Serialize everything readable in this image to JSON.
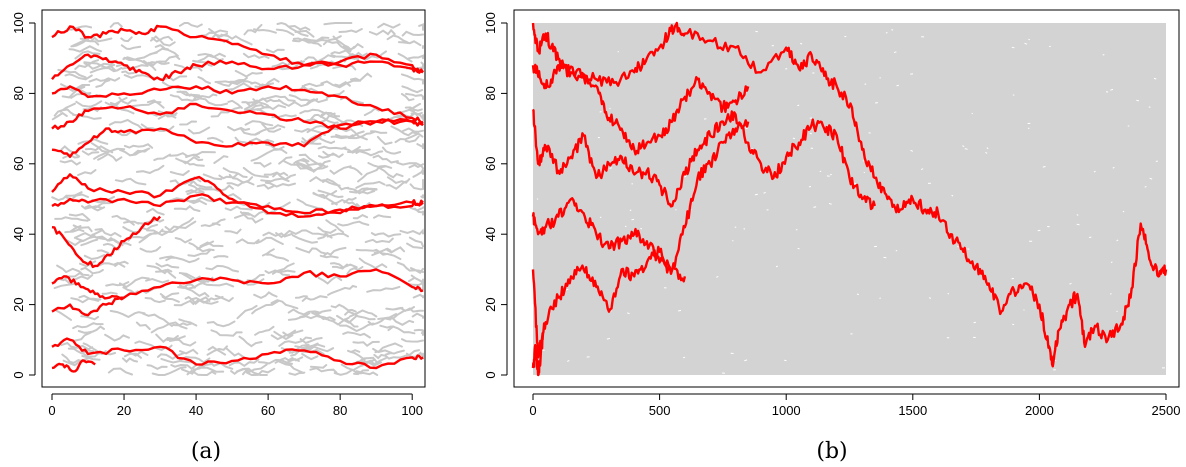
{
  "chart_data": [
    {
      "type": "line",
      "panel_label": "(a)",
      "xlim": [
        0,
        103
      ],
      "ylim": [
        0,
        100
      ],
      "x_ticks": [
        0,
        20,
        40,
        60,
        80,
        100
      ],
      "y_ticks": [
        0,
        20,
        40,
        60,
        80,
        100
      ],
      "grid": false,
      "background_web_color": "#c8c8c8",
      "line_color": "#ff0000",
      "series": [
        {
          "x": [
            0,
            5,
            10,
            15,
            20,
            25,
            30,
            40,
            50,
            60,
            70,
            80,
            90,
            100,
            103
          ],
          "y": [
            96,
            99,
            96,
            97,
            98,
            97,
            99,
            96,
            94,
            91,
            88,
            88,
            89,
            87,
            86
          ]
        },
        {
          "x": [
            0,
            5,
            10,
            15,
            20,
            25,
            30,
            35,
            40,
            50,
            60,
            70,
            80,
            90,
            100,
            103
          ],
          "y": [
            84,
            88,
            91,
            90,
            88,
            86,
            84,
            86,
            88,
            89,
            87,
            88,
            89,
            91,
            88,
            86
          ]
        },
        {
          "x": [
            0,
            5,
            10,
            20,
            30,
            40,
            50,
            60,
            70,
            80,
            90,
            100,
            103
          ],
          "y": [
            80,
            82,
            79,
            80,
            81,
            82,
            80,
            82,
            81,
            79,
            76,
            73,
            72
          ]
        },
        {
          "x": [
            0,
            5,
            10,
            20,
            30,
            40,
            50,
            60,
            70,
            80,
            90,
            100,
            103
          ],
          "y": [
            70,
            72,
            75,
            76,
            74,
            77,
            75,
            74,
            72,
            70,
            72,
            72,
            71
          ]
        },
        {
          "x": [
            0,
            5,
            10,
            15,
            20,
            30,
            40,
            50,
            60,
            70,
            80,
            90,
            100,
            103
          ],
          "y": [
            64,
            62,
            66,
            70,
            69,
            70,
            66,
            65,
            66,
            65,
            71,
            72,
            72,
            71
          ]
        },
        {
          "x": [
            0,
            5,
            10,
            20,
            30,
            40,
            45,
            50,
            60,
            70,
            80,
            90,
            100,
            103
          ],
          "y": [
            52,
            57,
            53,
            52,
            51,
            56,
            54,
            50,
            46,
            45,
            46,
            48,
            48,
            49
          ]
        },
        {
          "x": [
            0,
            5,
            10,
            20,
            30,
            40,
            50,
            60,
            70,
            80,
            90,
            100,
            103
          ],
          "y": [
            48,
            50,
            49,
            50,
            48,
            51,
            49,
            48,
            46,
            47,
            48,
            49,
            49
          ]
        },
        {
          "x": [
            0,
            4,
            8,
            12,
            16,
            20,
            25,
            30
          ],
          "y": [
            42,
            38,
            33,
            31,
            34,
            38,
            42,
            45
          ]
        },
        {
          "x": [
            0,
            5,
            10,
            15,
            20,
            30,
            40,
            50,
            60,
            70,
            80,
            90,
            100,
            103
          ],
          "y": [
            18,
            20,
            17,
            20,
            22,
            25,
            27,
            27,
            26,
            29,
            28,
            30,
            25,
            24
          ]
        },
        {
          "x": [
            0,
            4,
            8,
            12,
            16,
            20
          ],
          "y": [
            26,
            28,
            25,
            23,
            22,
            22
          ]
        },
        {
          "x": [
            0,
            5,
            10,
            20,
            30,
            40,
            50,
            60,
            70,
            80,
            90,
            100,
            103
          ],
          "y": [
            8,
            10,
            6,
            7,
            8,
            3,
            4,
            6,
            7,
            4,
            2,
            5,
            5
          ]
        },
        {
          "x": [
            0,
            3,
            6,
            9,
            12
          ],
          "y": [
            2,
            3,
            1,
            4,
            3
          ]
        }
      ]
    },
    {
      "type": "line",
      "panel_label": "(b)",
      "xlim": [
        -20,
        2550
      ],
      "ylim": [
        0,
        100
      ],
      "x_ticks": [
        0,
        500,
        1000,
        1500,
        2000,
        2500
      ],
      "y_ticks": [
        0,
        20,
        40,
        60,
        80,
        100
      ],
      "grid": false,
      "background_color": "#d3d3d3",
      "line_color": "#ff0000",
      "series": [
        {
          "x": [
            0,
            20,
            50,
            80,
            120,
            180,
            250,
            320,
            400,
            450,
            520,
            560,
            600,
            700,
            800,
            900,
            1000,
            1050,
            1100,
            1150,
            1200,
            1260,
            1300,
            1350,
            1400,
            1450,
            1500,
            1550,
            1600,
            1650,
            1700,
            1750,
            1800,
            1850,
            1900,
            1950,
            2000,
            2030,
            2050,
            2080,
            2120,
            2150,
            2180,
            2220,
            2270,
            2320,
            2360,
            2400,
            2430,
            2470,
            2500
          ],
          "y": [
            100,
            92,
            97,
            92,
            88,
            85,
            84,
            83,
            86,
            90,
            95,
            99,
            97,
            95,
            93,
            86,
            93,
            87,
            91,
            85,
            82,
            76,
            64,
            56,
            50,
            47,
            50,
            47,
            46,
            40,
            35,
            31,
            26,
            18,
            24,
            26,
            20,
            10,
            3,
            13,
            20,
            23,
            8,
            14,
            10,
            14,
            22,
            43,
            35,
            28,
            30
          ]
        },
        {
          "x": [
            0,
            30,
            60,
            100,
            150,
            200,
            260,
            300,
            350,
            400,
            450,
            500,
            550,
            600,
            650,
            700,
            750,
            800,
            850
          ],
          "y": [
            88,
            84,
            82,
            88,
            86,
            85,
            80,
            73,
            70,
            64,
            66,
            68,
            72,
            79,
            84,
            80,
            76,
            78,
            82
          ]
        },
        {
          "x": [
            0,
            20,
            50,
            100,
            150,
            200,
            250,
            300,
            350,
            400,
            450,
            500,
            550,
            600,
            650,
            700,
            750,
            800,
            850,
            900,
            950,
            1000,
            1050,
            1100,
            1150,
            1200,
            1250,
            1300,
            1350
          ],
          "y": [
            75,
            60,
            65,
            58,
            62,
            68,
            56,
            60,
            62,
            57,
            58,
            54,
            48,
            57,
            64,
            68,
            72,
            74,
            66,
            60,
            56,
            62,
            66,
            71,
            70,
            68,
            56,
            50,
            48
          ]
        },
        {
          "x": [
            0,
            20,
            50,
            100,
            150,
            200,
            250,
            300,
            350,
            400,
            450,
            500,
            550,
            600,
            650,
            700,
            750,
            800,
            850
          ],
          "y": [
            45,
            40,
            42,
            45,
            50,
            46,
            40,
            36,
            38,
            40,
            38,
            32,
            30,
            42,
            56,
            60,
            66,
            70,
            72
          ]
        },
        {
          "x": [
            0,
            20,
            50,
            100,
            150,
            200,
            250,
            300,
            350,
            400,
            450,
            500,
            550,
            600
          ],
          "y": [
            30,
            5,
            15,
            22,
            28,
            30,
            25,
            18,
            30,
            28,
            32,
            35,
            30,
            28
          ]
        },
        {
          "x": [
            0,
            10,
            20,
            30,
            40
          ],
          "y": [
            2,
            8,
            0,
            5,
            12
          ]
        }
      ]
    }
  ]
}
